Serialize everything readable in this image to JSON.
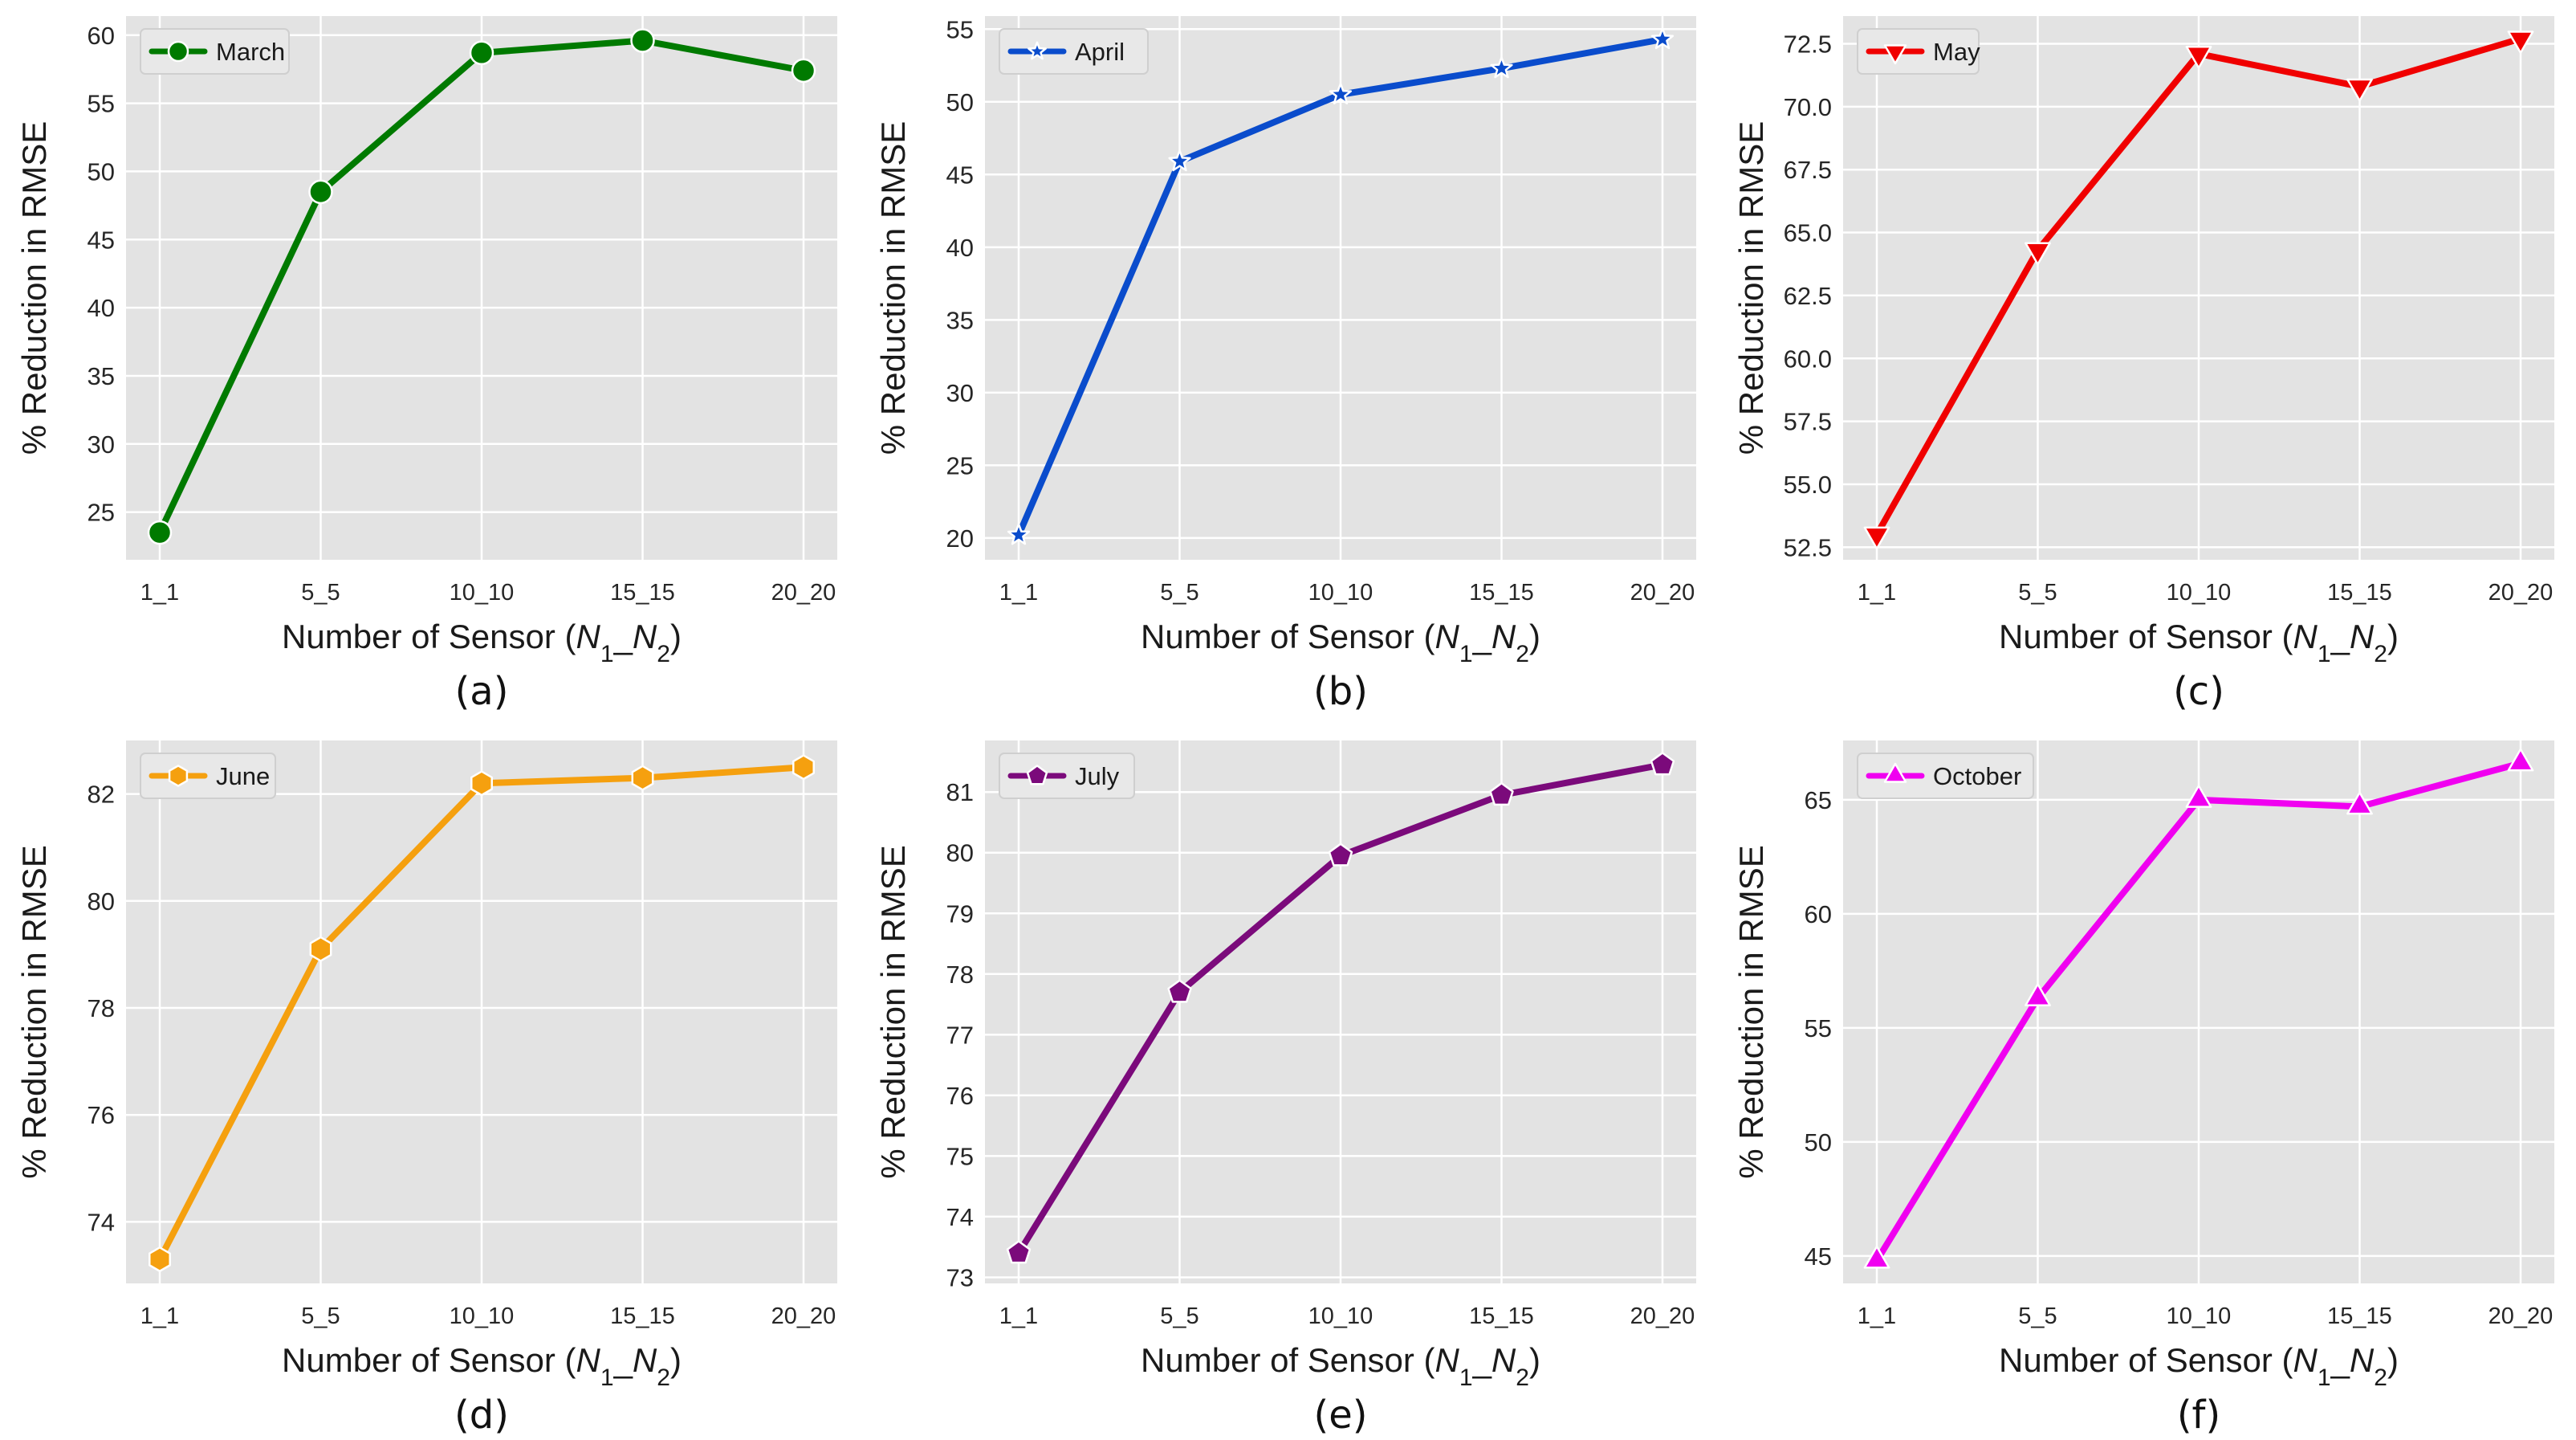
{
  "figure_title": "",
  "chart_data": [
    {
      "type": "line",
      "caption": "(a)",
      "legend_label": "March",
      "color": "#007a00",
      "marker": "circle",
      "categories": [
        "1_1",
        "5_5",
        "10_10",
        "15_15",
        "20_20"
      ],
      "values": [
        23.5,
        48.5,
        58.7,
        59.6,
        57.4
      ],
      "xlabel": "Number of Sensor (N1_N2)",
      "ylabel": "% Reduction in RMSE",
      "ylim": [
        21.5,
        61.4
      ],
      "yticks": [
        25,
        30,
        35,
        40,
        45,
        50,
        55,
        60
      ],
      "ytick_labels": [
        "25",
        "30",
        "35",
        "40",
        "45",
        "50",
        "55",
        "60"
      ],
      "legend_position": "top-left",
      "grid": true
    },
    {
      "type": "line",
      "caption": "(b)",
      "legend_label": "April",
      "color": "#0a4ccc",
      "marker": "star",
      "categories": [
        "1_1",
        "5_5",
        "10_10",
        "15_15",
        "20_20"
      ],
      "values": [
        20.2,
        45.9,
        50.5,
        52.3,
        54.3
      ],
      "xlabel": "Number of Sensor (N1_N2)",
      "ylabel": "% Reduction in RMSE",
      "ylim": [
        18.5,
        55.9
      ],
      "yticks": [
        20,
        25,
        30,
        35,
        40,
        45,
        50,
        55
      ],
      "ytick_labels": [
        "20",
        "25",
        "30",
        "35",
        "40",
        "45",
        "50",
        "55"
      ],
      "legend_position": "top-left",
      "grid": true
    },
    {
      "type": "line",
      "caption": "(c)",
      "legend_label": "May",
      "color": "#f00000",
      "marker": "triangle-down",
      "categories": [
        "1_1",
        "5_5",
        "10_10",
        "15_15",
        "20_20"
      ],
      "values": [
        53.0,
        64.3,
        72.1,
        70.8,
        72.7
      ],
      "xlabel": "Number of Sensor (N1_N2)",
      "ylabel": "% Reduction in RMSE",
      "ylim": [
        52.0,
        73.6
      ],
      "yticks": [
        52.5,
        55.0,
        57.5,
        60.0,
        62.5,
        65.0,
        67.5,
        70.0,
        72.5
      ],
      "ytick_labels": [
        "52.5",
        "55.0",
        "57.5",
        "60.0",
        "62.5",
        "65.0",
        "67.5",
        "70.0",
        "72.5"
      ],
      "legend_position": "top-left",
      "grid": true
    },
    {
      "type": "line",
      "caption": "(d)",
      "legend_label": "June",
      "color": "#f5a00f",
      "marker": "hexagon",
      "categories": [
        "1_1",
        "5_5",
        "10_10",
        "15_15",
        "20_20"
      ],
      "values": [
        73.3,
        79.1,
        82.2,
        82.3,
        82.5
      ],
      "xlabel": "Number of Sensor (N1_N2)",
      "ylabel": "% Reduction in RMSE",
      "ylim": [
        72.85,
        83.0
      ],
      "yticks": [
        74,
        76,
        78,
        80,
        82
      ],
      "ytick_labels": [
        "74",
        "76",
        "78",
        "80",
        "82"
      ],
      "legend_position": "top-left",
      "grid": true
    },
    {
      "type": "line",
      "caption": "(e)",
      "legend_label": "July",
      "color": "#7b0a7b",
      "marker": "pentagon",
      "categories": [
        "1_1",
        "5_5",
        "10_10",
        "15_15",
        "20_20"
      ],
      "values": [
        73.4,
        77.7,
        79.95,
        80.95,
        81.45
      ],
      "xlabel": "Number of Sensor (N1_N2)",
      "ylabel": "% Reduction in RMSE",
      "ylim": [
        72.9,
        81.85
      ],
      "yticks": [
        73,
        74,
        75,
        76,
        77,
        78,
        79,
        80,
        81
      ],
      "ytick_labels": [
        "73",
        "74",
        "75",
        "76",
        "77",
        "78",
        "79",
        "80",
        "81"
      ],
      "legend_position": "top-left",
      "grid": true
    },
    {
      "type": "line",
      "caption": "(f)",
      "legend_label": "October",
      "color": "#f000f0",
      "marker": "triangle-up",
      "categories": [
        "1_1",
        "5_5",
        "10_10",
        "15_15",
        "20_20"
      ],
      "values": [
        44.8,
        56.3,
        65.0,
        64.7,
        66.6
      ],
      "xlabel": "Number of Sensor (N1_N2)",
      "ylabel": "% Reduction in RMSE",
      "ylim": [
        43.8,
        67.6
      ],
      "yticks": [
        45,
        50,
        55,
        60,
        65
      ],
      "ytick_labels": [
        "45",
        "50",
        "55",
        "60",
        "65"
      ],
      "legend_position": "top-left",
      "grid": true
    }
  ]
}
